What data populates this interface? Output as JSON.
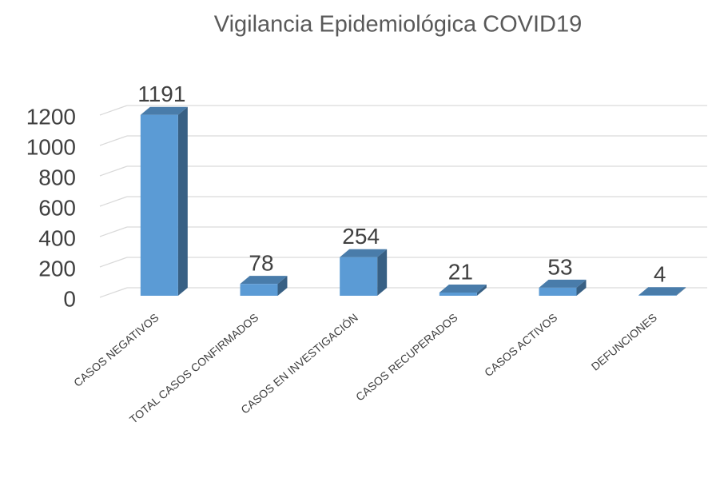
{
  "chart_data": {
    "type": "bar3d",
    "title": "Vigilancia Epidemiológica COVID19",
    "categories": [
      "CASOS NEGATIVOS",
      "TOTAL CASOS CONFIRMADOS",
      "CASOS EN INVESTIGACIÓN",
      "CASOS RECUPERADOS",
      "CASOS ACTIVOS",
      "DEFUNCIONES"
    ],
    "values": [
      1191,
      78,
      254,
      21,
      53,
      4
    ],
    "color": "#5b9bd5",
    "ylim": [
      0,
      1200
    ],
    "yticks": [
      0,
      200,
      400,
      600,
      800,
      1000,
      1200
    ],
    "grid": true
  }
}
